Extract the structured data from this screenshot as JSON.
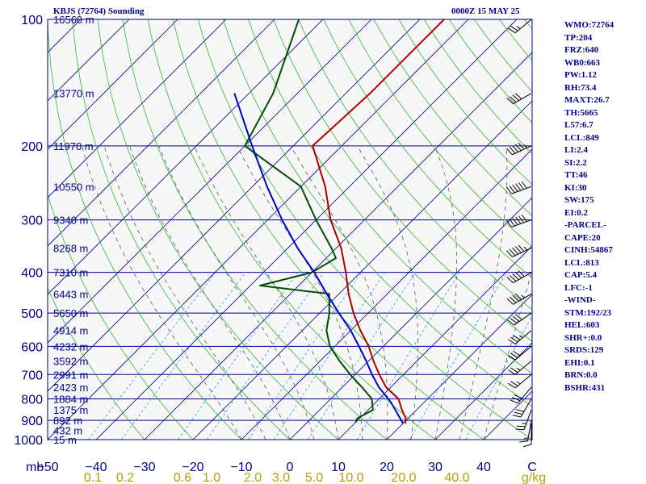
{
  "header": {
    "station": "KBJS (72764) Sounding",
    "time": "0000Z 15 MAY 25"
  },
  "indices": [
    "WMO:72764",
    "TP:204",
    "FRZ:640",
    "WB0:663",
    "PW:1.12",
    "RH:73.4",
    "MAXT:26.7",
    "TH:5665",
    "L57:6.7",
    "LCL:849",
    "LI:2.4",
    "SI:2.2",
    "TT:46",
    "KI:30",
    "SW:175",
    "EI:0.2",
    "-PARCEL-",
    "CAPE:20",
    "CINH:54867",
    "LCL:813",
    "CAP:5.4",
    "LFC:-1",
    "-WIND-",
    "STM:192/23",
    "HEL:603",
    "SHR+:0.0",
    "SRDS:129",
    "EHI:0.1",
    "BRN:0.0",
    "BSHR:431"
  ],
  "colors": {
    "isobar": "#00008b",
    "isotherm": "#00008b",
    "dry_adiabat": "#2db82d",
    "mixing_ratio": "#2b9ad6",
    "moist_adiabat": "#555555",
    "temperature": "#b00000",
    "dewpoint": "#005000",
    "parcel": "#0000cd",
    "axis_text": "#00008b",
    "mixing_text": "#b8a000"
  },
  "chart_data": {
    "type": "line",
    "title": "KBJS (72764) Sounding",
    "xlabel": "C",
    "ylabel": "mb",
    "xlim": [
      -50,
      50
    ],
    "ylim": [
      1000,
      100
    ],
    "y_scale": "log",
    "pressure_ticks": [
      100,
      200,
      300,
      400,
      500,
      600,
      700,
      800,
      900,
      1000
    ],
    "y_unit_label": "mb",
    "temperature_ticks": [
      "−50",
      "−40",
      "−30",
      "−20",
      "−10",
      "0",
      "10",
      "20",
      "30",
      "40",
      "C"
    ],
    "mixing_ratio_ticks": [
      "0.1",
      "0.2",
      "0.6",
      "1.0",
      "2.0",
      "3.0",
      "5.0",
      "10.0",
      "20.0",
      "40.0",
      "g/kg"
    ],
    "mixing_ratio_values": [
      0.1,
      0.2,
      0.6,
      1.0,
      2.0,
      3.0,
      5.0,
      10.0,
      20.0,
      40.0
    ],
    "height_labels": [
      {
        "p": 100,
        "label": "16560 m"
      },
      {
        "p": 150,
        "label": "13770 m"
      },
      {
        "p": 200,
        "label": "11970 m"
      },
      {
        "p": 250,
        "label": "10550 m"
      },
      {
        "p": 300,
        "label": "9340 m"
      },
      {
        "p": 350,
        "label": "8268 m"
      },
      {
        "p": 400,
        "label": "7310 m"
      },
      {
        "p": 450,
        "label": "6443 m"
      },
      {
        "p": 500,
        "label": "5650 m"
      },
      {
        "p": 550,
        "label": "4914 m"
      },
      {
        "p": 600,
        "label": "4232 m"
      },
      {
        "p": 650,
        "label": "3592 m"
      },
      {
        "p": 700,
        "label": "2991 m"
      },
      {
        "p": 750,
        "label": "2423 m"
      },
      {
        "p": 800,
        "label": "1884 m"
      },
      {
        "p": 850,
        "label": "1375 m"
      },
      {
        "p": 900,
        "label": "892 m"
      },
      {
        "p": 950,
        "label": "432 m"
      },
      {
        "p": 1000,
        "label": "15 m"
      }
    ],
    "series": [
      {
        "name": "Temperature",
        "points": [
          [
            915,
            20.5
          ],
          [
            890,
            19.5
          ],
          [
            850,
            17
          ],
          [
            800,
            14
          ],
          [
            750,
            9
          ],
          [
            700,
            5
          ],
          [
            650,
            1
          ],
          [
            600,
            -3
          ],
          [
            550,
            -8
          ],
          [
            500,
            -13
          ],
          [
            450,
            -18
          ],
          [
            400,
            -23
          ],
          [
            350,
            -29
          ],
          [
            300,
            -37
          ],
          [
            250,
            -45
          ],
          [
            200,
            -56
          ],
          [
            150,
            -55
          ],
          [
            100,
            -55
          ]
        ]
      },
      {
        "name": "Dewpoint",
        "points": [
          [
            910,
            10
          ],
          [
            890,
            9.5
          ],
          [
            850,
            11
          ],
          [
            800,
            8.5
          ],
          [
            750,
            4
          ],
          [
            700,
            -1
          ],
          [
            650,
            -6
          ],
          [
            600,
            -11
          ],
          [
            550,
            -15
          ],
          [
            500,
            -18
          ],
          [
            450,
            -22
          ],
          [
            430,
            -38
          ],
          [
            400,
            -30
          ],
          [
            370,
            -28
          ],
          [
            350,
            -31
          ],
          [
            300,
            -40
          ],
          [
            250,
            -50
          ],
          [
            200,
            -70
          ],
          [
            150,
            -75
          ],
          [
            100,
            -85
          ]
        ]
      },
      {
        "name": "Parcel",
        "points": [
          [
            915,
            20
          ],
          [
            813,
            13
          ],
          [
            750,
            7.5
          ],
          [
            700,
            3.5
          ],
          [
            650,
            -0.5
          ],
          [
            600,
            -5
          ],
          [
            550,
            -10
          ],
          [
            500,
            -16
          ],
          [
            450,
            -22.5
          ],
          [
            400,
            -29.5
          ],
          [
            350,
            -38
          ],
          [
            300,
            -47
          ],
          [
            250,
            -57
          ],
          [
            200,
            -68.5
          ],
          [
            150,
            -83
          ]
        ]
      }
    ],
    "wind_barbs": [
      {
        "p": 915,
        "dir": 180,
        "spd": 10
      },
      {
        "p": 900,
        "dir": 190,
        "spd": 15
      },
      {
        "p": 850,
        "dir": 200,
        "spd": 25
      },
      {
        "p": 800,
        "dir": 210,
        "spd": 30
      },
      {
        "p": 750,
        "dir": 220,
        "spd": 30
      },
      {
        "p": 700,
        "dir": 230,
        "spd": 25
      },
      {
        "p": 650,
        "dir": 230,
        "spd": 25
      },
      {
        "p": 600,
        "dir": 230,
        "spd": 30
      },
      {
        "p": 550,
        "dir": 230,
        "spd": 35
      },
      {
        "p": 500,
        "dir": 235,
        "spd": 40
      },
      {
        "p": 450,
        "dir": 240,
        "spd": 45
      },
      {
        "p": 400,
        "dir": 240,
        "spd": 50
      },
      {
        "p": 350,
        "dir": 245,
        "spd": 55
      },
      {
        "p": 300,
        "dir": 250,
        "spd": 60
      },
      {
        "p": 250,
        "dir": 250,
        "spd": 60
      },
      {
        "p": 200,
        "dir": 245,
        "spd": 55
      },
      {
        "p": 150,
        "dir": 240,
        "spd": 40
      },
      {
        "p": 100,
        "dir": 230,
        "spd": 25
      }
    ]
  }
}
